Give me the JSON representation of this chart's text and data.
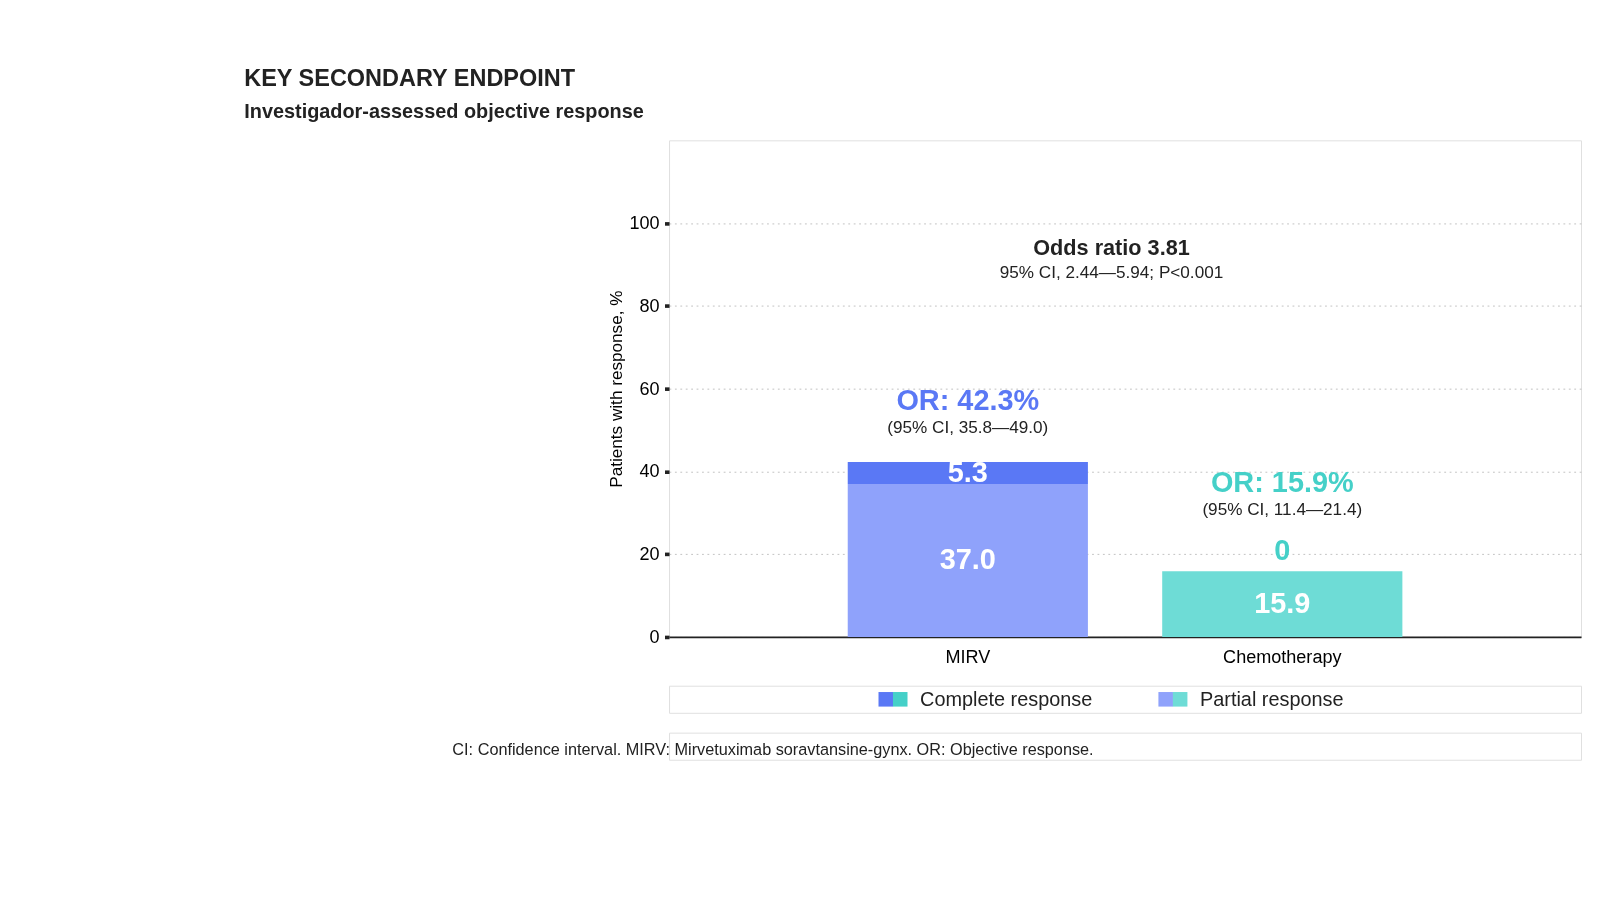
{
  "chart_data": {
    "type": "bar",
    "stacked": true,
    "title": "KEY SECONDARY ENDPOINT",
    "subtitle": "Investigador-assessed objective response",
    "ylabel": "Patients with response, %",
    "categories": [
      "MIRV",
      "Chemotherapy"
    ],
    "series": [
      {
        "name": "Partial response",
        "colors": [
          "#8fa2fb",
          "#6edcd6"
        ],
        "values": [
          37.0,
          15.9
        ],
        "value_labels": [
          "37.0",
          "15.9"
        ]
      },
      {
        "name": "Complete response",
        "colors": [
          "#5a78f5",
          "#45d0c8"
        ],
        "values": [
          5.3,
          0
        ],
        "value_labels": [
          "5.3",
          "0"
        ]
      }
    ],
    "ylim": [
      0,
      120
    ],
    "yticks": [
      0,
      20,
      40,
      60,
      80,
      100
    ],
    "grid": "y",
    "legend": "bottom",
    "annotations": [
      "Odds ratio 3.81",
      "95% CI, 2.44—5.94; P<0.001",
      {
        "text": "OR: 42.3%",
        "x": "MIRV",
        "y": 42.3
      },
      {
        "text": "(95% CI, 35.8—49.0)",
        "x": "MIRV",
        "y": 42.3
      },
      {
        "text": "OR: 15.9%",
        "x": "Chemotherapy",
        "y": 15.9
      },
      {
        "text": "(95% CI, 11.4—21.4)",
        "x": "Chemotherapy",
        "y": 15.9
      },
      "CI: Confidence interval. MIRV: Mirvetuximab soravtansine-gynx. OR: Objective response."
    ]
  }
}
